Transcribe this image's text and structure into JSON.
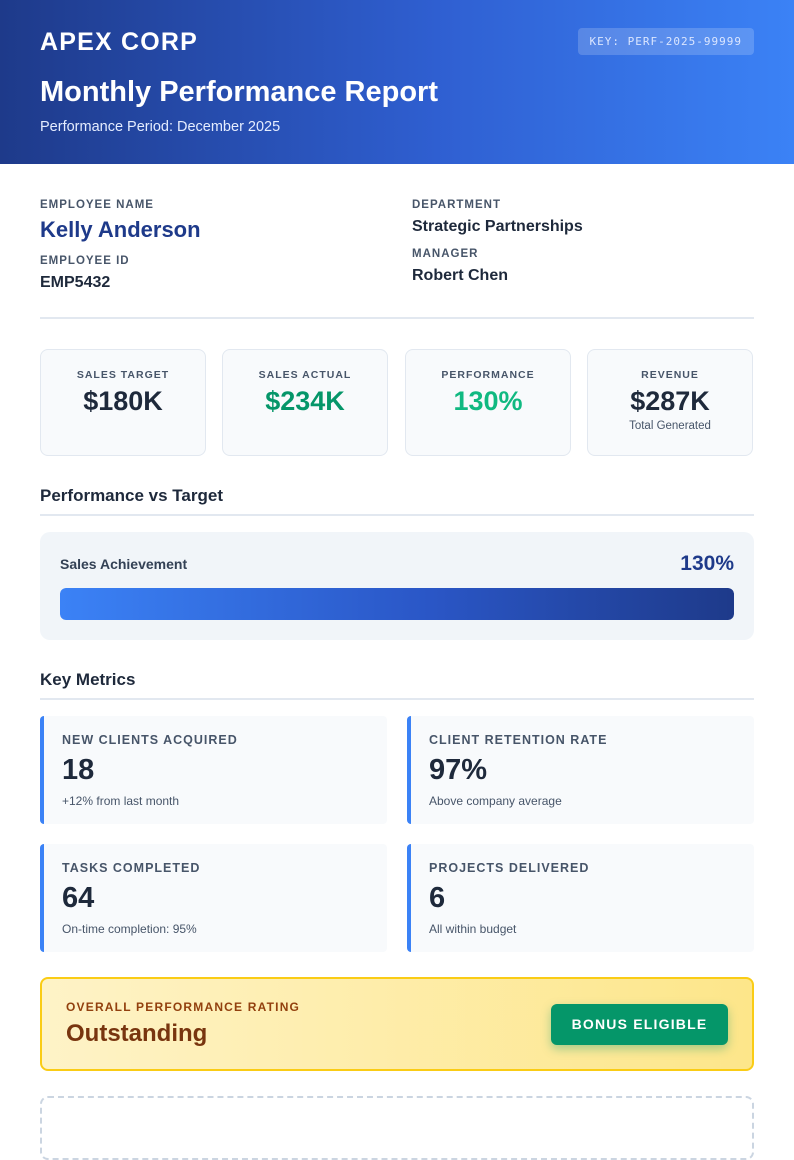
{
  "header": {
    "company": "APEX CORP",
    "key": "KEY: PERF-2025-99999",
    "title": "Monthly Performance Report",
    "period": "Performance Period: December 2025"
  },
  "employee": {
    "name_label": "Employee Name",
    "name": "Kelly Anderson",
    "id_label": "Employee ID",
    "id": "EMP5432",
    "department_label": "Department",
    "department": "Strategic Partnerships",
    "manager_label": "Manager",
    "manager": "Robert Chen"
  },
  "stats": [
    {
      "label": "Sales Target",
      "value": "$180K",
      "sub": "",
      "color": "#1e293b"
    },
    {
      "label": "Sales Actual",
      "value": "$234K",
      "sub": "",
      "color": "#059669"
    },
    {
      "label": "Performance",
      "value": "130%",
      "sub": "",
      "color": "#10b981"
    },
    {
      "label": "Revenue",
      "value": "$287K",
      "sub": "Total Generated",
      "color": "#1e293b"
    }
  ],
  "performance_vs_target": {
    "title": "Performance vs Target",
    "bar_label": "Sales Achievement",
    "bar_value": "130%",
    "bar_fill_fraction": 1.0
  },
  "key_metrics": {
    "title": "Key Metrics",
    "items": [
      {
        "label": "New Clients Acquired",
        "value": "18",
        "sub": "+12% from last month"
      },
      {
        "label": "Client Retention Rate",
        "value": "97%",
        "sub": "Above company average"
      },
      {
        "label": "Tasks Completed",
        "value": "64",
        "sub": "On-time completion: 95%"
      },
      {
        "label": "Projects Delivered",
        "value": "6",
        "sub": "All within budget"
      }
    ]
  },
  "rating": {
    "label": "Overall Performance Rating",
    "value": "Outstanding",
    "badge": "Bonus Eligible"
  },
  "colors": {
    "brand": "#1e3a8a",
    "accent": "#3b82f6",
    "success": "#059669",
    "highlight": "#facc15"
  }
}
